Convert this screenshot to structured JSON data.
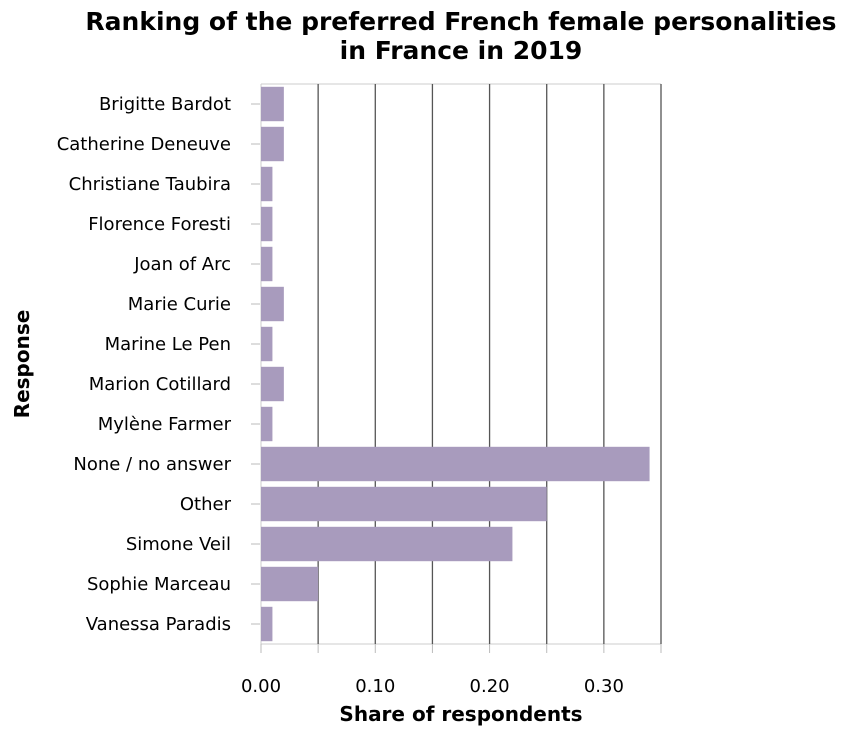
{
  "chart_data": {
    "type": "bar",
    "orientation": "horizontal",
    "title_lines": [
      "Ranking of the preferred French female personalities",
      "in France in 2019"
    ],
    "xlabel": "Share of respondents",
    "ylabel": "Response",
    "categories": [
      "Brigitte Bardot",
      "Catherine Deneuve",
      "Christiane Taubira",
      "Florence Foresti",
      "Joan of Arc",
      "Marie Curie",
      "Marine Le Pen",
      "Marion Cotillard",
      "Mylène Farmer",
      "None / no answer",
      "Other",
      "Simone Veil",
      "Sophie Marceau",
      "Vanessa Paradis"
    ],
    "values": [
      0.02,
      0.02,
      0.01,
      0.01,
      0.01,
      0.02,
      0.01,
      0.02,
      0.01,
      0.34,
      0.25,
      0.22,
      0.05,
      0.01
    ],
    "xticks": [
      0.0,
      0.1,
      0.2,
      0.3
    ],
    "xtick_labels": [
      "0.00",
      "0.10",
      "0.20",
      "0.30"
    ],
    "xlim": [
      0,
      0.35
    ],
    "grid": "vertical",
    "bar_color": "#a89bbd",
    "grid_color": "#555555"
  }
}
